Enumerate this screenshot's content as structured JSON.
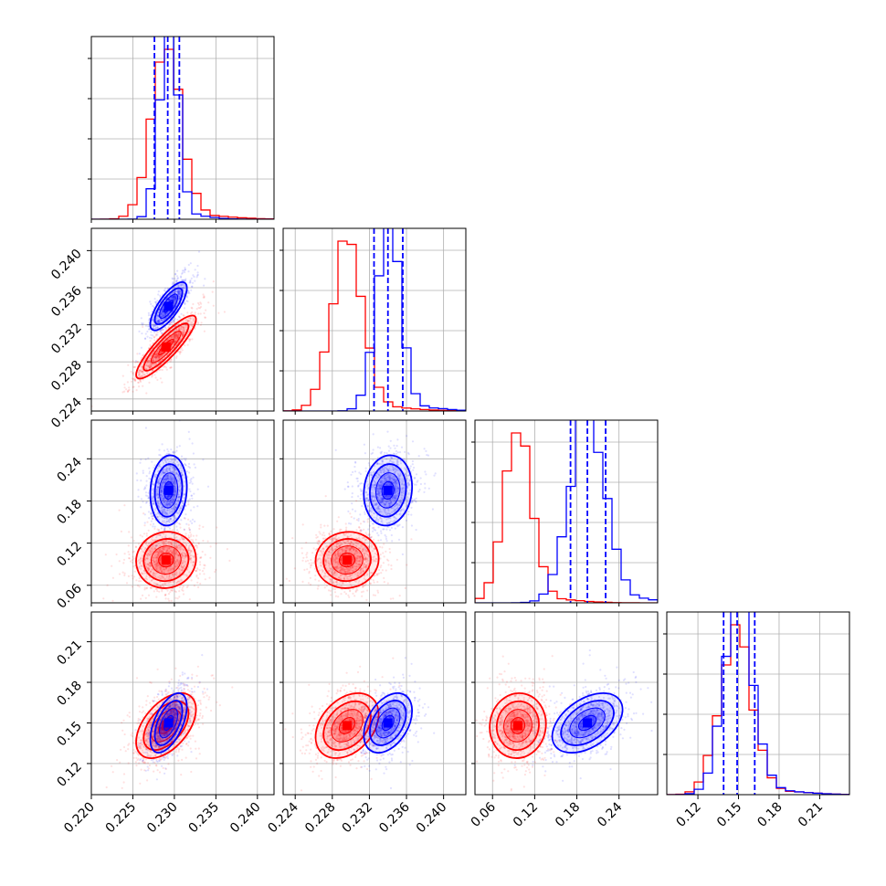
{
  "chart_data": {
    "type": "corner",
    "colors": {
      "series_a": "#0000ff",
      "series_b": "#ff0000",
      "grid": "#b0b0b0",
      "axis": "#000000"
    },
    "grid": true,
    "params": [
      {
        "range": [
          0.22,
          0.242
        ],
        "ticks": [
          0.22,
          0.225,
          0.23,
          0.235,
          0.24
        ],
        "tick_labels": [
          "0.220",
          "0.225",
          "0.230",
          "0.235",
          "0.240"
        ],
        "mean": {
          "blue": 0.2293,
          "red": 0.229
        },
        "sd": {
          "blue": 0.0011,
          "red": 0.0018
        },
        "quantiles_blue": [
          0.2276,
          0.2292,
          0.2306
        ]
      },
      {
        "range": [
          0.2227,
          0.2424
        ],
        "ticks": [
          0.224,
          0.228,
          0.232,
          0.236,
          0.24
        ],
        "tick_labels": [
          "0.224",
          "0.228",
          "0.232",
          "0.236",
          "0.240"
        ],
        "mean": {
          "blue": 0.234,
          "red": 0.2296
        },
        "sd": {
          "blue": 0.0013,
          "red": 0.0017
        },
        "quantiles_blue": [
          0.2325,
          0.234,
          0.2356
        ]
      },
      {
        "range": [
          0.035,
          0.295
        ],
        "ticks": [
          0.06,
          0.12,
          0.18,
          0.24
        ],
        "tick_labels": [
          "0.06",
          "0.12",
          "0.18",
          "0.24"
        ],
        "mean": {
          "blue": 0.195,
          "red": 0.096
        },
        "sd": {
          "blue": 0.025,
          "red": 0.02
        },
        "quantiles_blue": [
          0.171,
          0.195,
          0.221
        ]
      },
      {
        "range": [
          0.097,
          0.232
        ],
        "ticks": [
          0.12,
          0.15,
          0.18,
          0.21
        ],
        "tick_labels": [
          "0.12",
          "0.15",
          "0.18",
          "0.21"
        ],
        "mean": {
          "blue": 0.15,
          "red": 0.148
        },
        "sd": {
          "blue": 0.011,
          "red": 0.012
        },
        "quantiles_blue": [
          0.139,
          0.149,
          0.162
        ]
      }
    ],
    "correlations": {
      "1-0": {
        "blue": 0.75,
        "red": 0.88
      },
      "2-0": {
        "blue": 0.1,
        "red": 0.05
      },
      "2-1": {
        "blue": 0.1,
        "red": 0.05
      },
      "3-0": {
        "blue": 0.55,
        "red": 0.5
      },
      "3-1": {
        "blue": 0.4,
        "red": 0.35
      },
      "3-2": {
        "blue": 0.45,
        "red": 0.05
      }
    }
  }
}
